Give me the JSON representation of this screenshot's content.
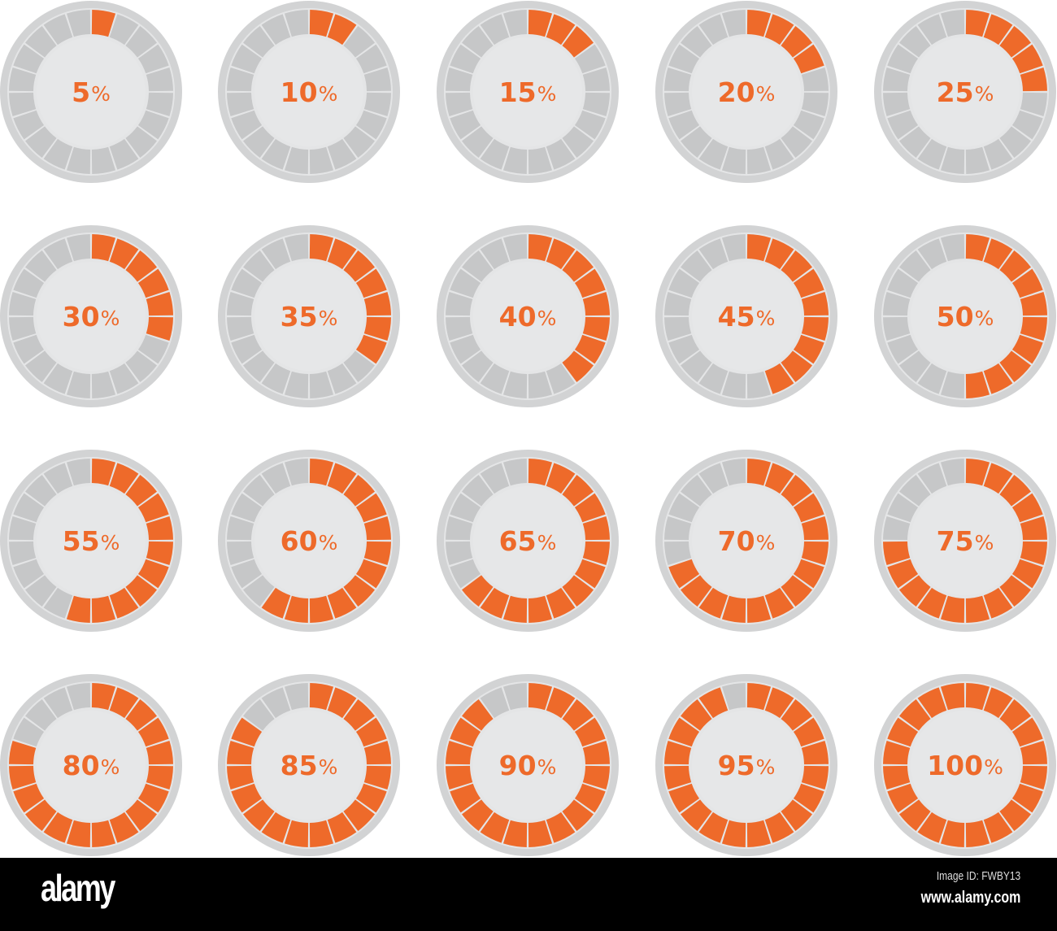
{
  "gauges": [
    {
      "value": 5,
      "label": "5",
      "unit": "%"
    },
    {
      "value": 10,
      "label": "10",
      "unit": "%"
    },
    {
      "value": 15,
      "label": "15",
      "unit": "%"
    },
    {
      "value": 20,
      "label": "20",
      "unit": "%"
    },
    {
      "value": 25,
      "label": "25",
      "unit": "%"
    },
    {
      "value": 30,
      "label": "30",
      "unit": "%"
    },
    {
      "value": 35,
      "label": "35",
      "unit": "%"
    },
    {
      "value": 40,
      "label": "40",
      "unit": "%"
    },
    {
      "value": 45,
      "label": "45",
      "unit": "%"
    },
    {
      "value": 50,
      "label": "50",
      "unit": "%"
    },
    {
      "value": 55,
      "label": "55",
      "unit": "%"
    },
    {
      "value": 60,
      "label": "60",
      "unit": "%"
    },
    {
      "value": 65,
      "label": "65",
      "unit": "%"
    },
    {
      "value": 70,
      "label": "70",
      "unit": "%"
    },
    {
      "value": 75,
      "label": "75",
      "unit": "%"
    },
    {
      "value": 80,
      "label": "80",
      "unit": "%"
    },
    {
      "value": 85,
      "label": "85",
      "unit": "%"
    },
    {
      "value": 90,
      "label": "90",
      "unit": "%"
    },
    {
      "value": 95,
      "label": "95",
      "unit": "%"
    },
    {
      "value": 100,
      "label": "100",
      "unit": "%"
    }
  ],
  "segments_per_ring": 20,
  "colors": {
    "fill": "#ee6a2a",
    "empty": "#c6c7c8",
    "rim": "#d2d3d4",
    "center": "#e6e7e8",
    "separator": "#e4e5e6"
  },
  "footer": {
    "logo": "alamy",
    "image_id": "Image ID: FWBY13",
    "site": "www.alamy.com"
  }
}
